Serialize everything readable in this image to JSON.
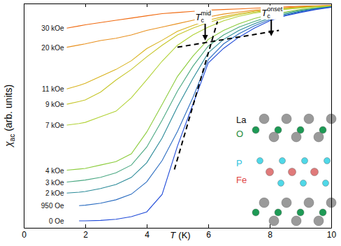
{
  "chart_data": {
    "type": "line",
    "xlabel": {
      "symbol": "T",
      "unit": "(K)"
    },
    "ylabel": {
      "symbol": "χ",
      "subscript": "ac",
      "unit": "(arb. units)"
    },
    "x": [
      1.4,
      1.8,
      2,
      2.5,
      3,
      3.5,
      4,
      4.5,
      5,
      5.5,
      6,
      6.5,
      7,
      7.5,
      8,
      8.5,
      9,
      9.5,
      10
    ],
    "xlim": [
      0,
      10
    ],
    "xticks": [
      0,
      2,
      4,
      6,
      8,
      10
    ],
    "ylim": [
      0,
      100
    ],
    "tick_labels": "x",
    "series": [
      {
        "name": "30 kOe",
        "color": "#f06a10",
        "values": [
          89,
          90,
          90.5,
          91.5,
          92.5,
          93.5,
          94.5,
          95.5,
          96,
          96.5,
          97,
          97.3,
          97.6,
          97.9,
          98.2,
          98.5,
          98.8,
          99,
          99.2
        ]
      },
      {
        "name": "20 kOe",
        "color": "#e8901e",
        "values": [
          80.5,
          81.5,
          82,
          83.5,
          84.5,
          86,
          88,
          89.5,
          91,
          92.5,
          94,
          95.3,
          96.2,
          97,
          97.6,
          98.1,
          98.5,
          98.8,
          99.1
        ]
      },
      {
        "name": "11 kOe",
        "color": "#d8b21c",
        "values": [
          61.9,
          63.5,
          64.4,
          67.5,
          70.6,
          74.5,
          79.9,
          83.6,
          87.6,
          90.2,
          92.5,
          94.2,
          95.5,
          96.5,
          97.3,
          97.8,
          98.3,
          98.7,
          99
        ]
      },
      {
        "name": "9 kOe",
        "color": "#c6c62a",
        "values": [
          55.1,
          56.3,
          57,
          60.5,
          65.9,
          70.6,
          76.2,
          81.4,
          86,
          89,
          91.5,
          93.5,
          95,
          96.2,
          97,
          97.6,
          98.1,
          98.6,
          98.9
        ]
      },
      {
        "name": "7 kOe",
        "color": "#b2d236",
        "values": [
          45.8,
          46.5,
          47,
          49.5,
          52,
          58,
          66,
          74.3,
          81.4,
          86,
          89.5,
          92.3,
          94.3,
          95.7,
          96.7,
          97.4,
          98,
          98.5,
          98.8
        ]
      },
      {
        "name": "4 kOe",
        "color": "#8ccc3c",
        "values": [
          25.7,
          26.2,
          26.5,
          28,
          29.5,
          33,
          42.7,
          55,
          67.5,
          76.5,
          84,
          88,
          91,
          93.3,
          95,
          96.2,
          97.3,
          98.1,
          98.7
        ]
      },
      {
        "name": "3 kOe",
        "color": "#4aa882",
        "values": [
          20.4,
          21,
          21.3,
          22.5,
          24.5,
          28,
          36,
          48,
          61,
          72,
          81,
          86,
          89.5,
          92,
          94.2,
          95.7,
          97,
          97.9,
          98.6
        ]
      },
      {
        "name": "2 kOe",
        "color": "#2a8a98",
        "values": [
          15.5,
          15.9,
          16.2,
          17.5,
          19.3,
          22.5,
          29,
          40,
          54,
          66.5,
          78,
          84,
          88,
          91,
          93.5,
          95.2,
          96.6,
          97.7,
          98.5
        ]
      },
      {
        "name": "950 Oe",
        "color": "#2a6cc0",
        "values": [
          null,
          9.9,
          10.1,
          11,
          12.5,
          15,
          20.5,
          30,
          43,
          58,
          75,
          82,
          86.5,
          90,
          92.8,
          94.8,
          96.3,
          97.5,
          98.4
        ]
      },
      {
        "name": "0 Oe",
        "color": "#1f4ad8",
        "values": [
          null,
          3.1,
          3.1,
          3.3,
          3.8,
          5,
          7.1,
          14.9,
          36.5,
          55,
          73.5,
          80,
          85,
          89,
          92.3,
          94.5,
          96,
          97.3,
          98.3
        ]
      }
    ],
    "lines": [
      {
        "x": [
          4.9,
          6.3
        ],
        "y": [
          26,
          92
        ],
        "line_style": "dashed"
      },
      {
        "x": [
          5.0,
          8.3
        ],
        "y": [
          80.5,
          88
        ],
        "line_style": "dashed"
      }
    ],
    "annotations": [
      {
        "text": "T",
        "subscript": "c",
        "superscript": "mid",
        "x": 5.9,
        "y": 83.5
      },
      {
        "text": "T",
        "subscript": "c",
        "superscript": "onset",
        "x": 8.05,
        "y": 85.4
      }
    ],
    "inset": {
      "labels": [
        {
          "text": "La",
          "color": "#111111"
        },
        {
          "text": "O",
          "color": "#1e8a3a"
        },
        {
          "text": "P",
          "color": "#30c2de"
        },
        {
          "text": "Fe",
          "color": "#e04444"
        }
      ]
    }
  }
}
